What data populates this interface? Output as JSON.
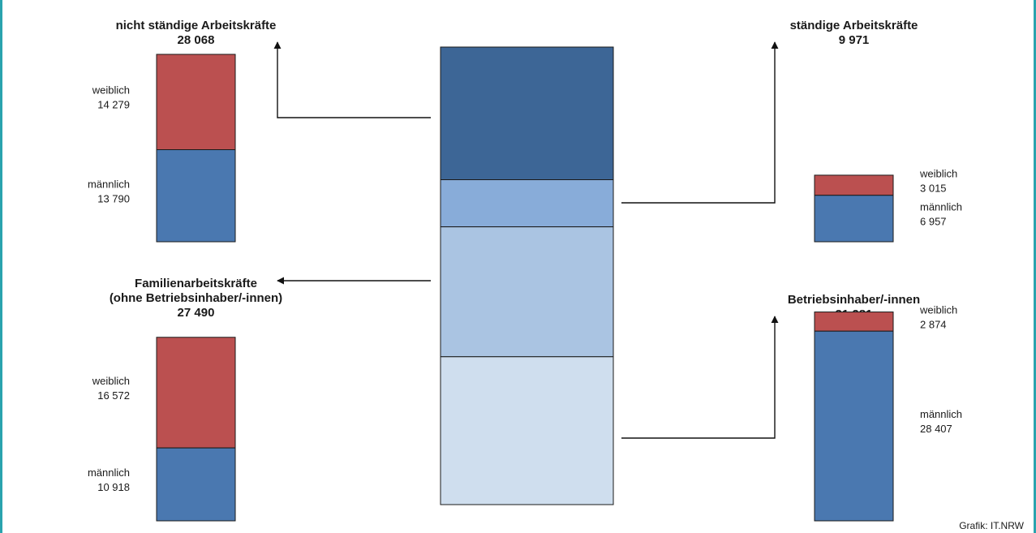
{
  "credit": "Grafik: IT.NRW",
  "colors": {
    "female": "#bb5050",
    "male": "#4a78b0",
    "frame": "#2aa3ae",
    "center_segments": [
      "#3d6696",
      "#88acd9",
      "#aac4e2",
      "#cfdeee"
    ]
  },
  "chart_data": {
    "type": "bar",
    "stacked": true,
    "center_bar": {
      "segments": [
        {
          "group": "nicht ständige Arbeitskräfte",
          "value": 28068
        },
        {
          "group": "ständige Arbeitskräfte",
          "value": 9971
        },
        {
          "group": "Familienarbeitskräfte (ohne Betriebsinhaber/-innen)",
          "value": 27490
        },
        {
          "group": "Betriebsinhaber/-innen",
          "value": 31281
        }
      ]
    },
    "groups": [
      {
        "id": "nicht-staendige",
        "title_lines": [
          "nicht ständige Arbeitskräfte"
        ],
        "total_text": "28 068",
        "total": 28068,
        "female_label": "weiblich",
        "female_text": "14 279",
        "female": 14279,
        "male_label": "männlich",
        "male_text": "13 790",
        "male": 13790
      },
      {
        "id": "staendige",
        "title_lines": [
          "ständige Arbeitskräfte"
        ],
        "total_text": "9 971",
        "total": 9971,
        "female_label": "weiblich",
        "female_text": "3 015",
        "female": 3015,
        "male_label": "männlich",
        "male_text": "6 957",
        "male": 6957
      },
      {
        "id": "familien",
        "title_lines": [
          "Familienarbeitskräfte",
          "(ohne Betriebsinhaber/-innen)"
        ],
        "total_text": "27 490",
        "total": 27490,
        "female_label": "weiblich",
        "female_text": "16 572",
        "female": 16572,
        "male_label": "männlich",
        "male_text": "10 918",
        "male": 10918
      },
      {
        "id": "inhaber",
        "title_lines": [
          "Betriebsinhaber/-innen"
        ],
        "total_text": "31 281",
        "total": 31281,
        "female_label": "weiblich",
        "female_text": "2 874",
        "female": 2874,
        "male_label": "männlich",
        "male_text": "28 407",
        "male": 28407
      }
    ]
  }
}
